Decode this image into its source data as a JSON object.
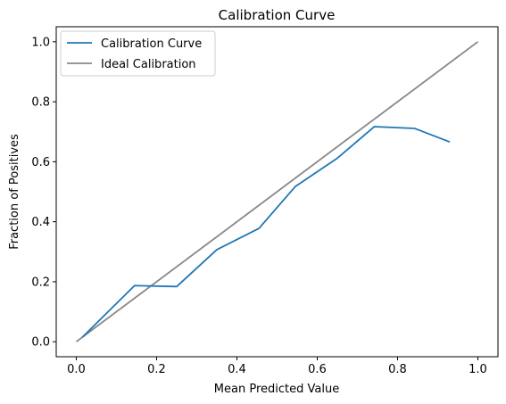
{
  "chart_data": {
    "type": "line",
    "title": "Calibration Curve",
    "xlabel": "Mean Predicted Value",
    "ylabel": "Fraction of Positives",
    "xlim": [
      -0.05,
      1.05
    ],
    "ylim": [
      -0.05,
      1.05
    ],
    "xticks": [
      "0.0",
      "0.2",
      "0.4",
      "0.6",
      "0.8",
      "1.0"
    ],
    "yticks": [
      "0.0",
      "0.2",
      "0.4",
      "0.6",
      "0.8",
      "1.0"
    ],
    "xtick_values": [
      0.0,
      0.2,
      0.4,
      0.6,
      0.8,
      1.0
    ],
    "ytick_values": [
      0.0,
      0.2,
      0.4,
      0.6,
      0.8,
      1.0
    ],
    "grid": false,
    "legend_position": "top-left",
    "series": [
      {
        "name": "Calibration Curve",
        "color": "#1f77b4",
        "x": [
          0.015,
          0.145,
          0.25,
          0.35,
          0.455,
          0.545,
          0.65,
          0.742,
          0.843,
          0.93
        ],
        "y": [
          0.015,
          0.187,
          0.184,
          0.307,
          0.378,
          0.517,
          0.612,
          0.717,
          0.711,
          0.666
        ]
      },
      {
        "name": "Ideal Calibration",
        "color": "#888888",
        "x": [
          0.0,
          1.0
        ],
        "y": [
          0.0,
          1.0
        ]
      }
    ]
  }
}
